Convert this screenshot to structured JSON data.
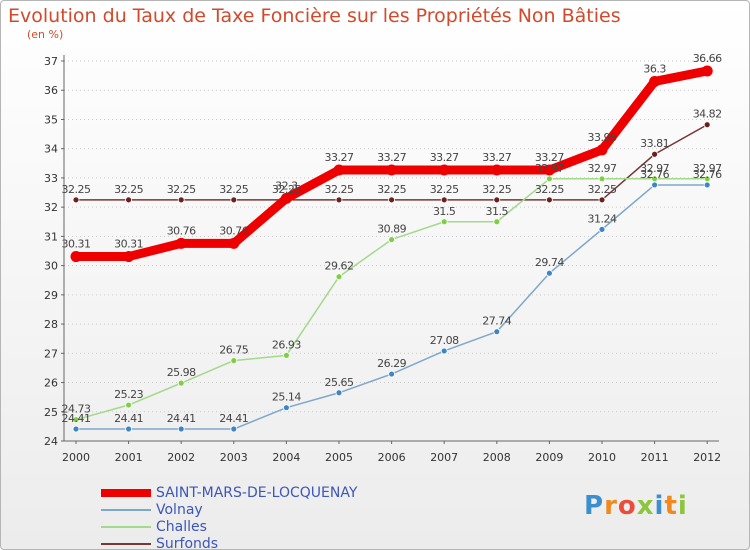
{
  "title": "Evolution du Taux de Taxe Foncière sur les Propriétés Non Bâties",
  "unit_label": "(en %)",
  "logo_text": "Proxiti",
  "chart_data": {
    "type": "line",
    "title": "Evolution du Taux de Taxe Foncière sur les Propriétés Non Bâties",
    "ylabel": "(en %)",
    "xlabel": "",
    "ylim": [
      24,
      37
    ],
    "yticks": [
      24,
      25,
      26,
      27,
      28,
      29,
      30,
      31,
      32,
      33,
      34,
      35,
      36,
      37
    ],
    "categories": [
      "2000",
      "2001",
      "2002",
      "2003",
      "2004",
      "2005",
      "2006",
      "2007",
      "2008",
      "2009",
      "2010",
      "2011",
      "2012"
    ],
    "legend_position": "bottom-left",
    "series": [
      {
        "name": "SAINT-MARS-DE-LOCQUENAY",
        "color": "#ee0000",
        "marker": "#ee0000",
        "emphasis": true,
        "values": [
          30.31,
          30.31,
          30.76,
          30.76,
          32.3,
          33.27,
          33.27,
          33.27,
          33.27,
          33.27,
          33.96,
          36.3,
          36.66
        ],
        "labels": [
          "30.31",
          "30.31",
          "30.76",
          "30.76",
          "32.3",
          "33.27",
          "33.27",
          "33.27",
          "33.27",
          "33.27",
          "33.96",
          "36.3",
          "36.66"
        ]
      },
      {
        "name": "Volnay",
        "color": "#7ea7cc",
        "marker": "#3d86c6",
        "emphasis": false,
        "values": [
          24.41,
          24.41,
          24.41,
          24.41,
          25.14,
          25.65,
          26.29,
          27.08,
          27.74,
          29.74,
          31.24,
          32.76,
          32.76
        ],
        "labels": [
          "24.41",
          "24.41",
          "24.41",
          "24.41",
          "25.14",
          "25.65",
          "26.29",
          "27.08",
          "27.74",
          "29.74",
          "31.24",
          "32.76",
          "32.76"
        ]
      },
      {
        "name": "Challes",
        "color": "#a3d98a",
        "marker": "#7fcf45",
        "emphasis": false,
        "values": [
          24.73,
          25.23,
          25.98,
          26.75,
          26.93,
          29.62,
          30.89,
          31.5,
          31.5,
          32.97,
          32.97,
          32.97,
          32.97
        ],
        "labels": [
          "24.73",
          "25.23",
          "25.98",
          "26.75",
          "26.93",
          "29.62",
          "30.89",
          "31.5",
          "31.5",
          "32.97",
          "32.97",
          "32.97",
          "32.97"
        ]
      },
      {
        "name": "Surfonds",
        "color": "#7a3535",
        "marker": "#6b1f1f",
        "emphasis": false,
        "values": [
          32.25,
          32.25,
          32.25,
          32.25,
          32.25,
          32.25,
          32.25,
          32.25,
          32.25,
          32.25,
          32.25,
          33.81,
          34.82
        ],
        "labels": [
          "32.25",
          "32.25",
          "32.25",
          "32.25",
          "32.25",
          "32.25",
          "32.25",
          "32.25",
          "32.25",
          "32.25",
          "32.25",
          "33.81",
          "34.82"
        ]
      }
    ]
  }
}
